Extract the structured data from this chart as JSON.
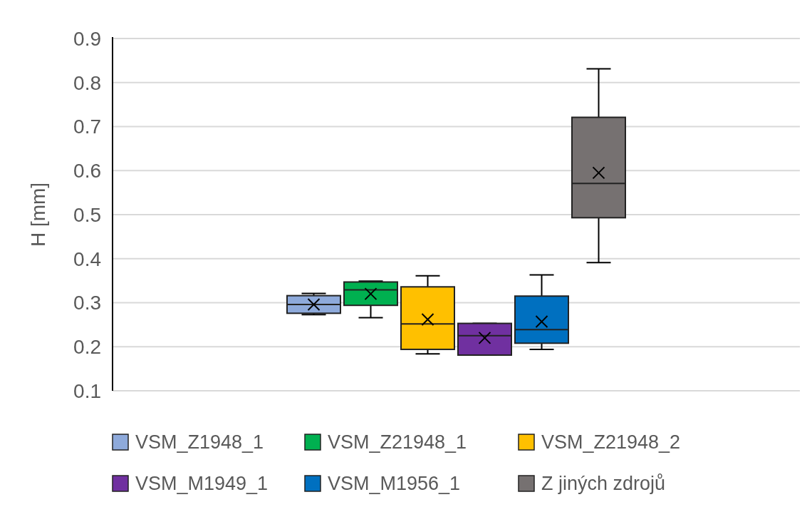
{
  "chart_data": {
    "type": "box",
    "ylabel": "H [mm]",
    "categories": [
      null
    ],
    "ylim": [
      0.1,
      0.9
    ],
    "yticks": [
      0.1,
      0.2,
      0.3,
      0.4,
      0.5,
      0.6,
      0.7,
      0.8,
      0.9
    ],
    "grid": "y",
    "legend": "bottom",
    "series": [
      {
        "name": "VSM_Z1948_1",
        "color": "#8eaadb",
        "boxes": [
          {
            "low": 0.273,
            "q1": 0.276,
            "median": 0.296,
            "q3": 0.316,
            "high": 0.321,
            "mean": 0.296
          }
        ]
      },
      {
        "name": "VSM_Z21948_1",
        "color": "#00b050",
        "boxes": [
          {
            "low": 0.266,
            "q1": 0.294,
            "median": 0.329,
            "q3": 0.347,
            "high": 0.349,
            "mean": 0.32
          }
        ]
      },
      {
        "name": "VSM_Z21948_2",
        "color": "#ffc000",
        "boxes": [
          {
            "low": 0.184,
            "q1": 0.194,
            "median": 0.252,
            "q3": 0.336,
            "high": 0.361,
            "mean": 0.262
          }
        ]
      },
      {
        "name": "VSM_M1949_1",
        "color": "#7030a0",
        "boxes": [
          {
            "low": 0.181,
            "q1": 0.181,
            "median": 0.225,
            "q3": 0.253,
            "high": 0.253,
            "mean": 0.22
          }
        ]
      },
      {
        "name": "VSM_M1956_1",
        "color": "#0070c0",
        "boxes": [
          {
            "low": 0.194,
            "q1": 0.208,
            "median": 0.239,
            "q3": 0.315,
            "high": 0.363,
            "mean": 0.257
          }
        ]
      },
      {
        "name": "Z jiných zdrojů",
        "color": "#767171",
        "boxes": [
          {
            "low": 0.391,
            "q1": 0.493,
            "median": 0.571,
            "q3": 0.721,
            "high": 0.831,
            "mean": 0.595
          }
        ]
      }
    ]
  }
}
